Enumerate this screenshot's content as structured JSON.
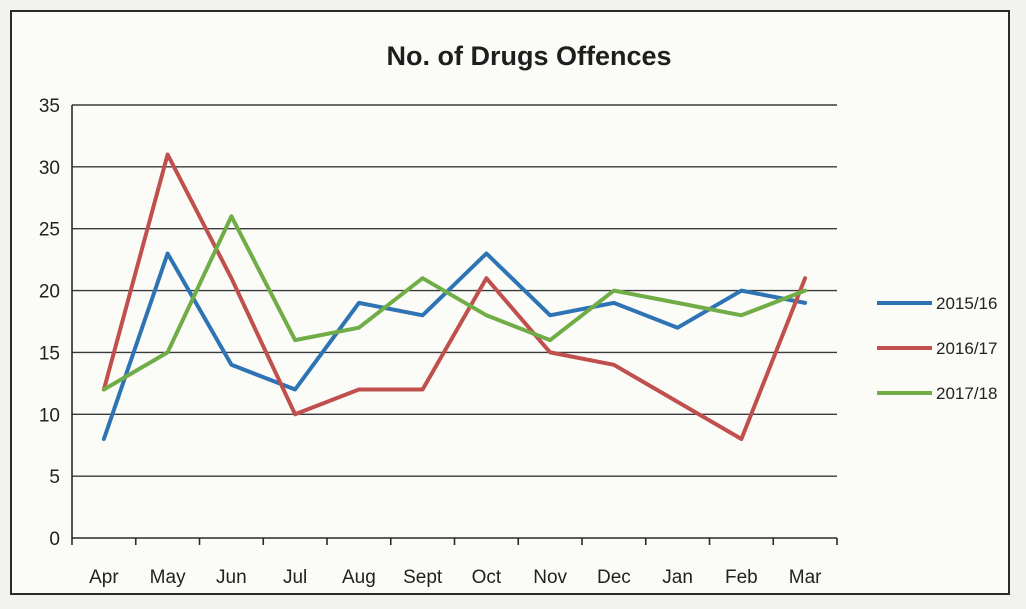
{
  "chart_data": {
    "type": "line",
    "title": "No. of Drugs Offences",
    "xlabel": "",
    "ylabel": "",
    "categories": [
      "Apr",
      "May",
      "Jun",
      "Jul",
      "Aug",
      "Sept",
      "Oct",
      "Nov",
      "Dec",
      "Jan",
      "Feb",
      "Mar"
    ],
    "ylim": [
      0,
      35
    ],
    "yticks": [
      0,
      5,
      10,
      15,
      20,
      25,
      30,
      35
    ],
    "grid": true,
    "legend_position": "right",
    "series": [
      {
        "name": "2015/16",
        "color": "#2e74b5",
        "values": [
          8,
          23,
          14,
          12,
          19,
          18,
          23,
          18,
          19,
          17,
          20,
          19
        ]
      },
      {
        "name": "2016/17",
        "color": "#c0504d",
        "values": [
          12,
          31,
          21,
          10,
          12,
          12,
          21,
          15,
          14,
          11,
          8,
          21
        ]
      },
      {
        "name": "2017/18",
        "color": "#70ad47",
        "values": [
          12,
          15,
          26,
          16,
          17,
          21,
          18,
          16,
          20,
          19,
          18,
          20
        ]
      }
    ]
  }
}
